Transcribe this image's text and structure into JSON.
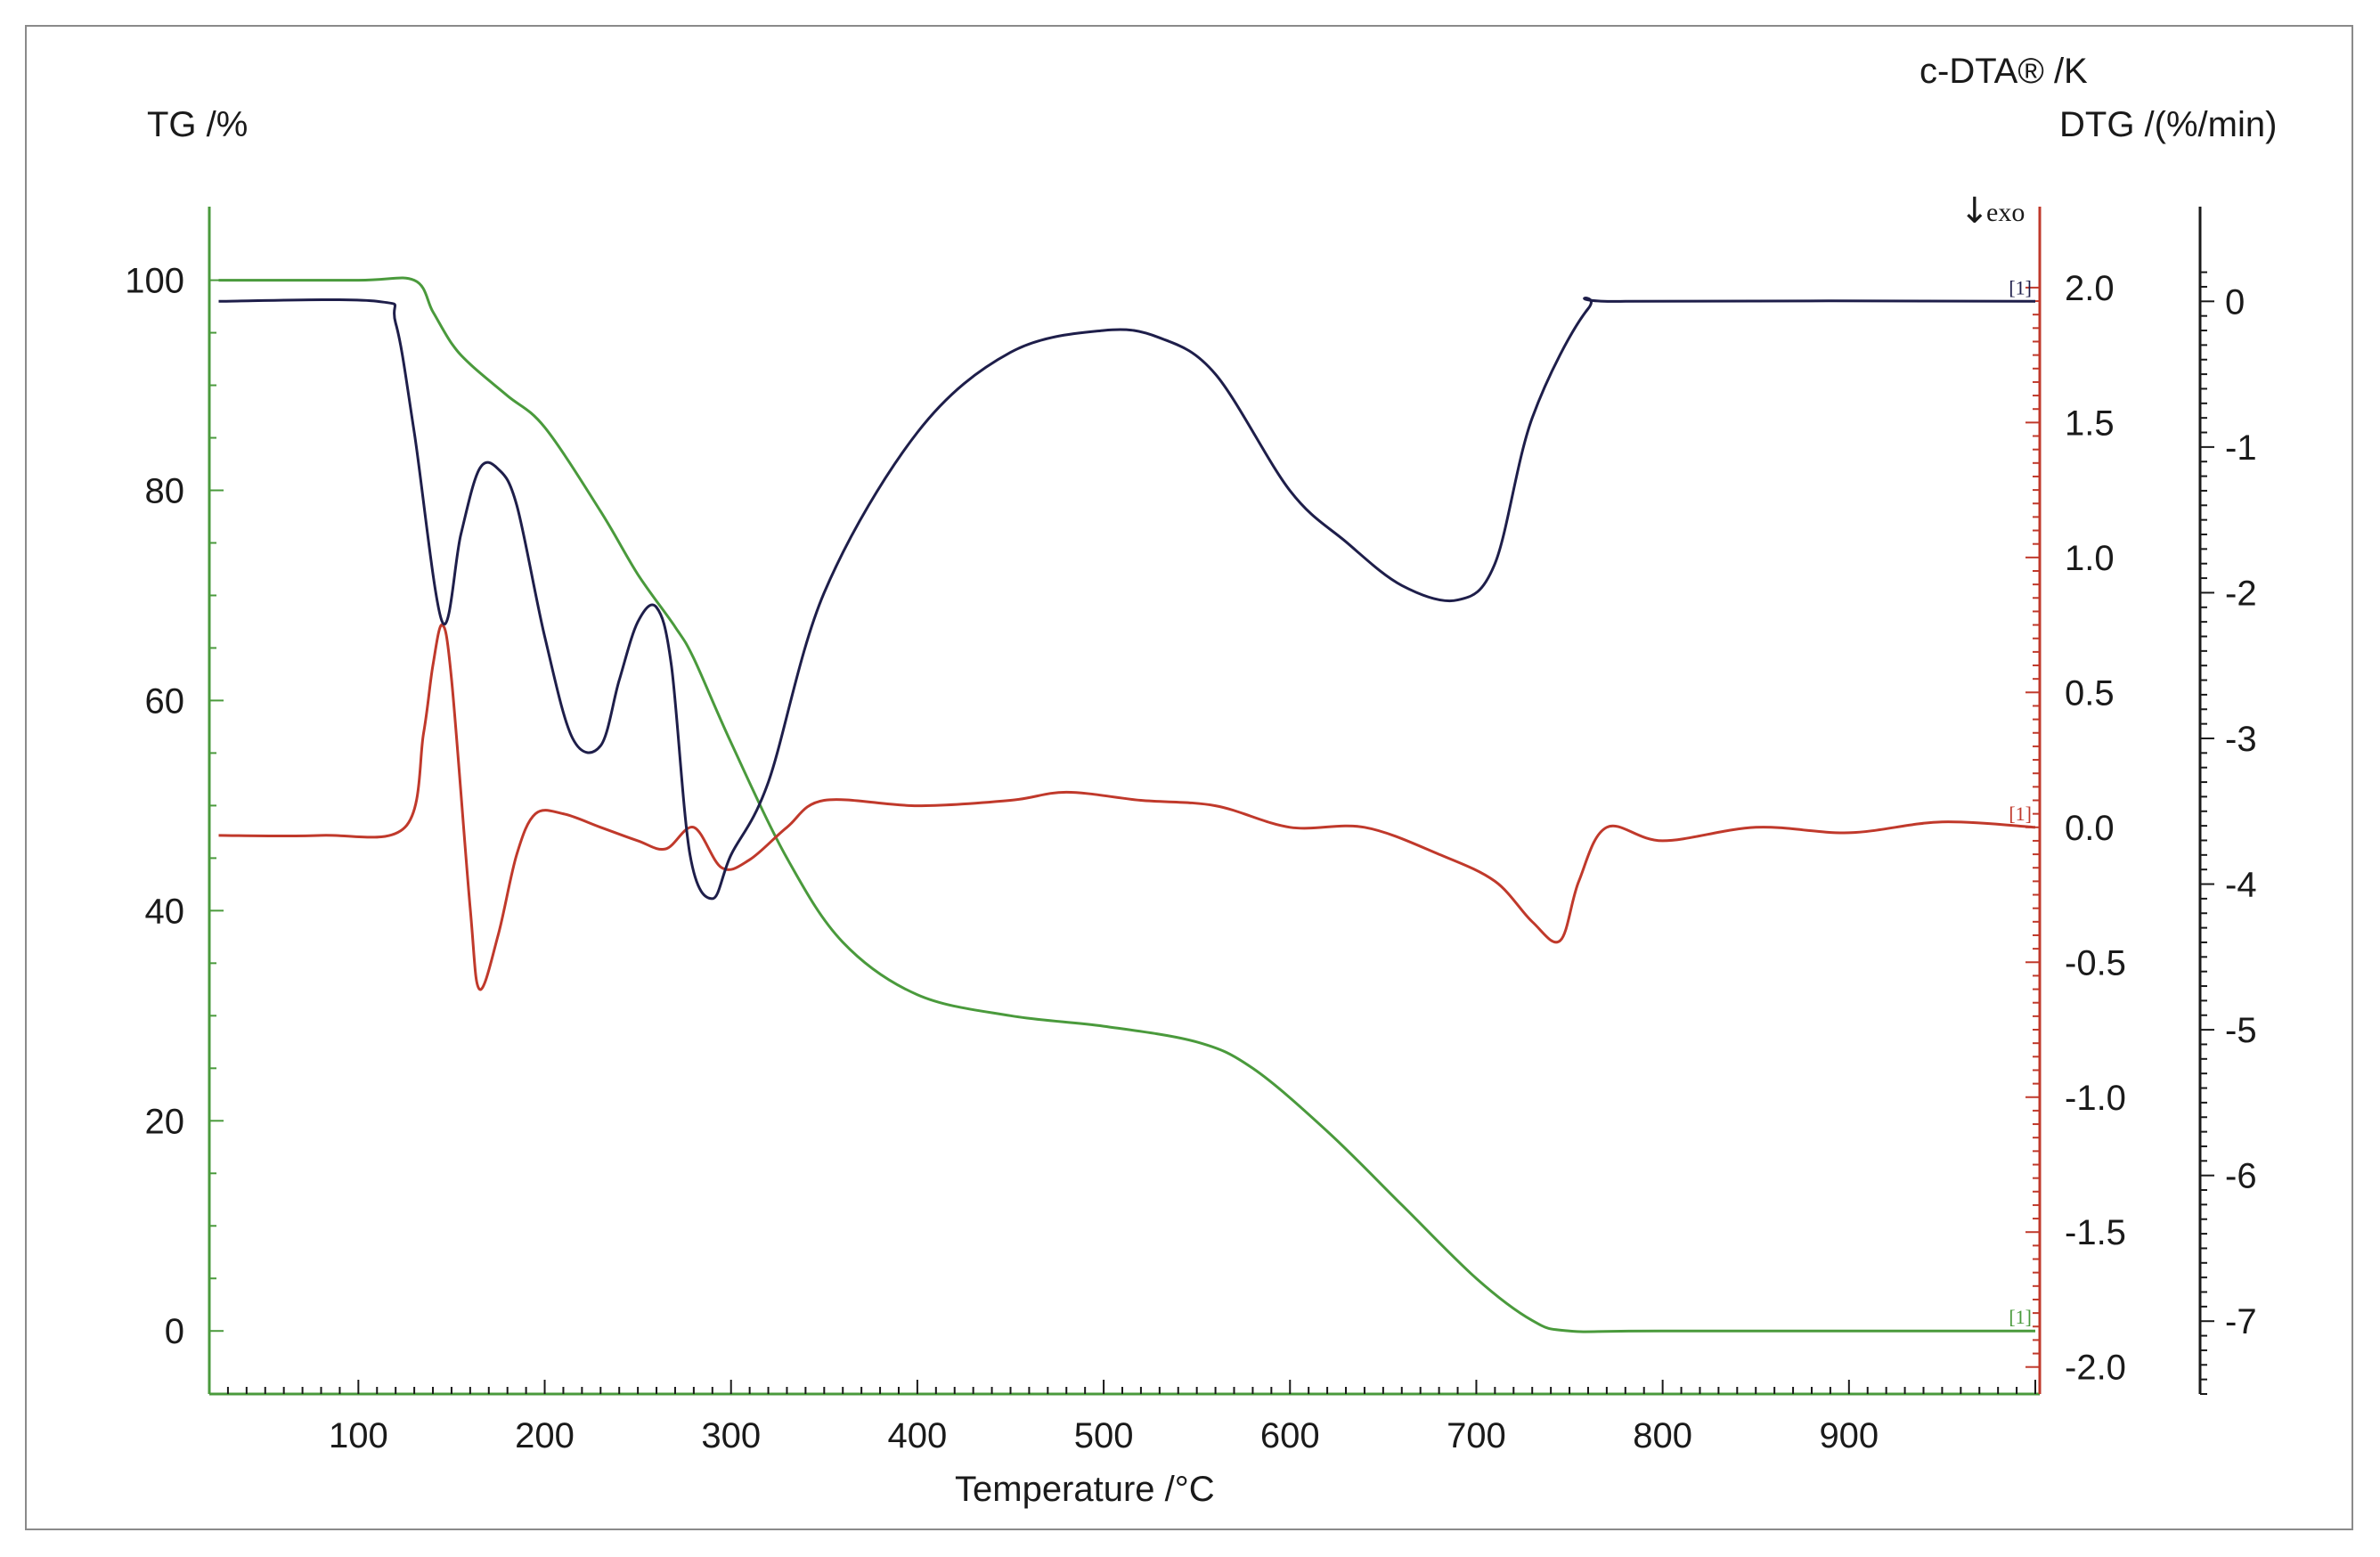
{
  "chart_data": {
    "type": "line",
    "xlabel": "Temperature /°C",
    "xlim": [
      20,
      1000
    ],
    "x_ticks": [
      100,
      200,
      300,
      400,
      500,
      600,
      700,
      800,
      900
    ],
    "axes": {
      "tg": {
        "label": "TG /%",
        "ylim": [
          -6,
          107
        ],
        "ticks": [
          0,
          20,
          40,
          60,
          80,
          100
        ],
        "color": "#4a9a3c"
      },
      "cdta": {
        "label": "c-DTA® /K",
        "ylim": [
          -2.1,
          2.3
        ],
        "ticks": [
          "2.0",
          "1.5",
          "1.0",
          "0.5",
          "0.0",
          "-0.5",
          "-1.0",
          "-1.5",
          "-2.0"
        ],
        "color": "#c0392b",
        "annotation": "↓ exo"
      },
      "dtg": {
        "label": "DTG /(%/min)",
        "ylim": [
          -7.5,
          0.65
        ],
        "ticks": [
          0,
          -1,
          -2,
          -3,
          -4,
          -5,
          -6,
          -7
        ],
        "color": "#1a1a1a"
      }
    },
    "series": [
      {
        "axis": "tg",
        "color": "#4a9a3c",
        "marker": "[1]",
        "x": [
          25,
          100,
          130,
          140,
          150,
          160,
          180,
          200,
          230,
          250,
          270,
          280,
          300,
          330,
          360,
          400,
          450,
          500,
          550,
          580,
          620,
          660,
          700,
          730,
          750,
          800,
          1000
        ],
        "y": [
          100,
          100,
          100,
          97,
          94,
          92,
          89,
          86,
          78,
          72,
          67,
          64,
          56,
          45,
          37,
          32,
          30,
          29,
          27.5,
          25,
          19,
          12,
          5,
          1,
          0,
          0,
          0
        ]
      },
      {
        "axis": "cdta",
        "color": "#c0392b",
        "marker": "[1]",
        "x": [
          25,
          80,
          125,
          135,
          140,
          145,
          150,
          160,
          165,
          175,
          185,
          195,
          210,
          230,
          250,
          265,
          280,
          295,
          310,
          330,
          350,
          400,
          450,
          480,
          520,
          560,
          600,
          640,
          680,
          710,
          730,
          745,
          755,
          770,
          800,
          850,
          900,
          950,
          1000
        ],
        "y": [
          -0.03,
          -0.03,
          0.0,
          0.35,
          0.6,
          0.75,
          0.55,
          -0.3,
          -0.6,
          -0.4,
          -0.1,
          0.05,
          0.05,
          0.0,
          -0.05,
          -0.08,
          0.0,
          -0.15,
          -0.12,
          0.0,
          0.1,
          0.08,
          0.1,
          0.13,
          0.1,
          0.08,
          0.0,
          0.0,
          -0.1,
          -0.2,
          -0.35,
          -0.42,
          -0.2,
          0.0,
          -0.05,
          0.0,
          -0.02,
          0.02,
          0.0
        ]
      },
      {
        "axis": "dtg",
        "color": "#1e1e4a",
        "marker": "[1]",
        "x": [
          25,
          110,
          120,
          130,
          145,
          155,
          165,
          175,
          185,
          200,
          215,
          230,
          240,
          250,
          260,
          268,
          278,
          290,
          300,
          320,
          350,
          400,
          450,
          500,
          530,
          560,
          600,
          630,
          660,
          690,
          710,
          730,
          760,
          780,
          1000
        ],
        "y": [
          0,
          0,
          -0.15,
          -0.9,
          -2.2,
          -1.6,
          -1.15,
          -1.15,
          -1.4,
          -2.3,
          -3.0,
          -3.05,
          -2.6,
          -2.2,
          -2.1,
          -2.5,
          -3.8,
          -4.1,
          -3.8,
          -3.3,
          -2.0,
          -0.9,
          -0.35,
          -0.2,
          -0.25,
          -0.5,
          -1.3,
          -1.65,
          -1.95,
          -2.05,
          -1.8,
          -0.8,
          -0.05,
          0,
          0
        ]
      }
    ]
  }
}
